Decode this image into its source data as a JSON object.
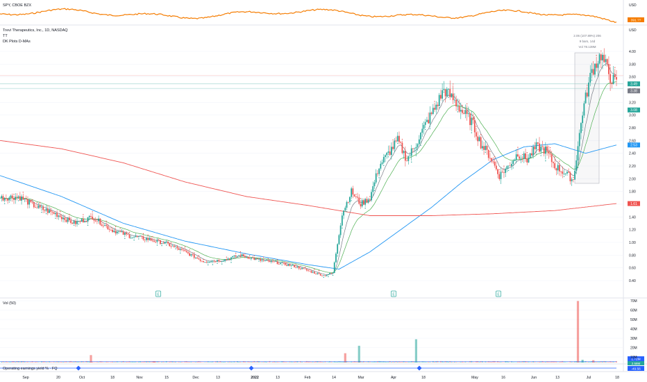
{
  "spy_pane": {
    "label": "SPY, CBOE BZX",
    "axis_unit": "USD",
    "price_badge": "391.??",
    "line_color": "#f57c00"
  },
  "main_pane": {
    "title": "Trevi Therapeutics, Inc., 1D, NASDAQ",
    "sub_label": "TT",
    "indicator_label": "DK Plots D-MAs",
    "axis_unit": "USD",
    "measure_box": {
      "line1": "2.06 (107.89%) 206",
      "line2": "9 bars, 14d",
      "line3": "Vol 78.139M"
    },
    "earnings_marker": "E",
    "up_color": "#26a69a",
    "down_color": "#ef5350"
  },
  "volume_pane": {
    "label": "Vol (50)",
    "badges": [
      "1.72M",
      "2.58M"
    ]
  },
  "earnings_pane": {
    "label": "Operating earnings yield % · FQ",
    "badge": "-49.56"
  },
  "x_axis": {
    "ticks": [
      "Sep",
      "20",
      "Oct",
      "18",
      "Nov",
      "15",
      "Dec",
      "13",
      "2022",
      "13",
      "Feb",
      "14",
      "Mar",
      "Apr",
      "18",
      "May",
      "16",
      "Jun",
      "13",
      "Jul",
      "18"
    ]
  },
  "chart_data": {
    "type": "candlestick",
    "title": "Trevi Therapeutics, Inc., 1D, NASDAQ",
    "ylim": [
      0.3,
      4.3
    ],
    "y_ticks": [
      "4.00",
      "3.80",
      "3.60",
      "3.40",
      "3.20",
      "3.00",
      "2.80",
      "2.60",
      "2.40",
      "2.20",
      "2.00",
      "1.80",
      "1.60",
      "1.40",
      "1.20",
      "1.00",
      "0.80",
      "0.60",
      "0.40"
    ],
    "price_badges": [
      {
        "value": "3.49",
        "color": "#26a69a"
      },
      {
        "value": "3.38",
        "color": "#787b86"
      },
      {
        "value": "3.08",
        "color": "#26a69a"
      },
      {
        "value": "2.53",
        "color": "#2196f3"
      },
      {
        "value": "1.61",
        "color": "#ef5350"
      }
    ],
    "price_path_anchors": [
      [
        0,
        1.7
      ],
      [
        12,
        1.72
      ],
      [
        24,
        1.55
      ],
      [
        36,
        1.45
      ],
      [
        48,
        1.3
      ],
      [
        60,
        1.4
      ],
      [
        72,
        1.2
      ],
      [
        84,
        1.1
      ],
      [
        96,
        1.05
      ],
      [
        108,
        0.98
      ],
      [
        120,
        0.85
      ],
      [
        132,
        0.7
      ],
      [
        144,
        0.72
      ],
      [
        156,
        0.8
      ],
      [
        168,
        0.72
      ],
      [
        180,
        0.68
      ],
      [
        192,
        0.62
      ],
      [
        204,
        0.52
      ],
      [
        210,
        0.48
      ],
      [
        216,
        0.52
      ],
      [
        222,
        1.45
      ],
      [
        228,
        1.8
      ],
      [
        234,
        1.6
      ],
      [
        240,
        1.7
      ],
      [
        246,
        2.2
      ],
      [
        252,
        2.4
      ],
      [
        258,
        2.6
      ],
      [
        264,
        2.3
      ],
      [
        270,
        2.55
      ],
      [
        276,
        2.85
      ],
      [
        282,
        3.1
      ],
      [
        288,
        3.4
      ],
      [
        294,
        3.25
      ],
      [
        300,
        3.05
      ],
      [
        306,
        2.9
      ],
      [
        312,
        2.55
      ],
      [
        318,
        2.35
      ],
      [
        324,
        2.05
      ],
      [
        330,
        2.2
      ],
      [
        336,
        2.4
      ],
      [
        342,
        2.3
      ],
      [
        348,
        2.5
      ],
      [
        354,
        2.45
      ],
      [
        360,
        2.2
      ],
      [
        366,
        2.1
      ],
      [
        372,
        1.98
      ],
      [
        378,
        3.05
      ],
      [
        384,
        3.7
      ],
      [
        390,
        3.95
      ],
      [
        396,
        3.6
      ],
      [
        400,
        3.49
      ]
    ],
    "series": [
      {
        "name": "",
        "color": "#2196f3",
        "anchors": [
          [
            0,
            2.05
          ],
          [
            40,
            1.72
          ],
          [
            80,
            1.3
          ],
          [
            120,
            1.02
          ],
          [
            160,
            0.82
          ],
          [
            200,
            0.65
          ],
          [
            220,
            0.58
          ],
          [
            240,
            0.85
          ],
          [
            260,
            1.2
          ],
          [
            280,
            1.55
          ],
          [
            300,
            1.95
          ],
          [
            320,
            2.3
          ],
          [
            340,
            2.5
          ],
          [
            360,
            2.55
          ],
          [
            380,
            2.4
          ],
          [
            400,
            2.53
          ]
        ]
      },
      {
        "name": "",
        "color": "#ef5350",
        "anchors": [
          [
            0,
            2.6
          ],
          [
            40,
            2.47
          ],
          [
            80,
            2.25
          ],
          [
            120,
            1.95
          ],
          [
            160,
            1.72
          ],
          [
            200,
            1.58
          ],
          [
            240,
            1.42
          ],
          [
            280,
            1.42
          ],
          [
            320,
            1.45
          ],
          [
            360,
            1.5
          ],
          [
            400,
            1.61
          ]
        ]
      }
    ],
    "volume_bars_M": [
      [
        59,
        8
      ],
      [
        100,
        1.5
      ],
      [
        224,
        10
      ],
      [
        233,
        18
      ],
      [
        270,
        25
      ],
      [
        375,
        66
      ],
      [
        378,
        3
      ],
      [
        385,
        2.5
      ]
    ]
  }
}
